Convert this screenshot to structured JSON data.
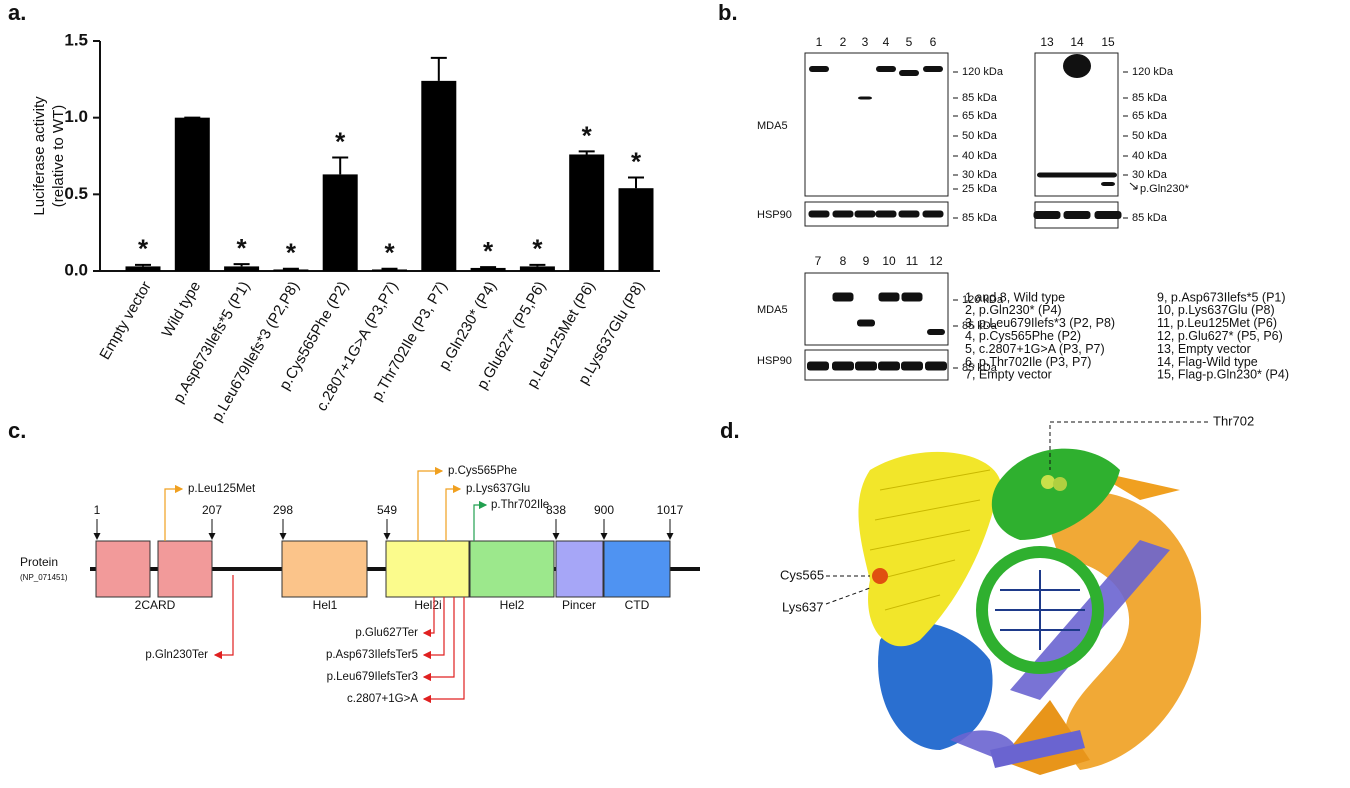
{
  "panel_labels": [
    "a.",
    "b.",
    "c.",
    "d."
  ],
  "chart_data": {
    "type": "bar",
    "ylabel": [
      "Luciferase activity",
      "(relative to WT)"
    ],
    "categories": [
      "Empty vector",
      "Wild type",
      "p.Asp673Ilefs*5 (P1)",
      "p.Leu679Ilefs*3 (P2,P8)",
      "p.Cys565Phe (P2)",
      "c.2807+1G>A (P3,P7)",
      "p.Thr702Ile (P3, P7)",
      "p.Gln230* (P4)",
      "p.Glu627* (P5,P6)",
      "p.Leu125Met (P6)",
      "p.Lys637Glu (P8)"
    ],
    "values": [
      0.03,
      1.0,
      0.03,
      0.01,
      0.63,
      0.01,
      1.24,
      0.02,
      0.03,
      0.76,
      0.54
    ],
    "errors": [
      0.01,
      0,
      0.015,
      0.005,
      0.11,
      0.005,
      0.15,
      0.005,
      0.01,
      0.02,
      0.07
    ],
    "annotations": [
      "*",
      null,
      "*",
      "*",
      "*",
      "*",
      null,
      "*",
      "*",
      "*",
      "*"
    ],
    "color": "#000000",
    "ylim": [
      0,
      1.5
    ],
    "yticks": [
      {
        "value": 0,
        "label": "0.0"
      },
      {
        "value": 0.5,
        "label": "0.5"
      },
      {
        "value": 1,
        "label": "1.0"
      },
      {
        "value": 1.5,
        "label": "1.5"
      }
    ]
  },
  "western_blot": {
    "lanes": [
      "1",
      "2",
      "3",
      "4",
      "5",
      "6",
      "7",
      "8",
      "9",
      "10",
      "11",
      "12",
      "13",
      "14",
      "15"
    ],
    "antibodies": [
      "MDA5",
      "HSP90"
    ],
    "markers": [
      "120 kDa",
      "85 kDa",
      "65 kDa",
      "50 kDa",
      "40 kDa",
      "30 kDa",
      "25 kDa"
    ],
    "truncation_label": "p.Gln230*",
    "legend": [
      "1 and 8, Wild type",
      "2, p.Gln230* (P4)",
      "3, p.Leu679Ilefs*3 (P2, P8)",
      "4, p.Cys565Phe (P2)",
      "5, c.2807+1G>A (P3, P7)",
      "6, p.Thr702Ile (P3, P7)",
      "7, Empty vector",
      "9, p.Asp673Ilefs*5 (P1)",
      "10, p.Lys637Glu (P8)",
      "11, p.Leu125Met (P6)",
      "12, p.Glu627* (P5, P6)",
      "13, Empty vector",
      "14, Flag-Wild type",
      "15, Flag-p.Gln230* (P4)"
    ]
  },
  "domain_diagram": {
    "protein": "Protein",
    "accession": "(NP_071451)",
    "positions": [
      1,
      207,
      298,
      549,
      838,
      900,
      1017
    ],
    "domains": [
      "2CARD",
      "Hel1",
      "Hel2i",
      "Hel2",
      "Pincer",
      "CTD"
    ],
    "missense": [
      "p.Leu125Met",
      "p.Cys565Phe",
      "p.Lys637Glu",
      "p.Thr702Ile"
    ],
    "truncating": [
      "p.Gln230Ter",
      "p.Glu627Ter",
      "p.Asp673IlefsTer5",
      "p.Leu679IlefsTer3",
      "c.2807+1G>A"
    ]
  },
  "structure": {
    "labels": [
      "Thr702",
      "Cys565",
      "Lys637"
    ]
  }
}
